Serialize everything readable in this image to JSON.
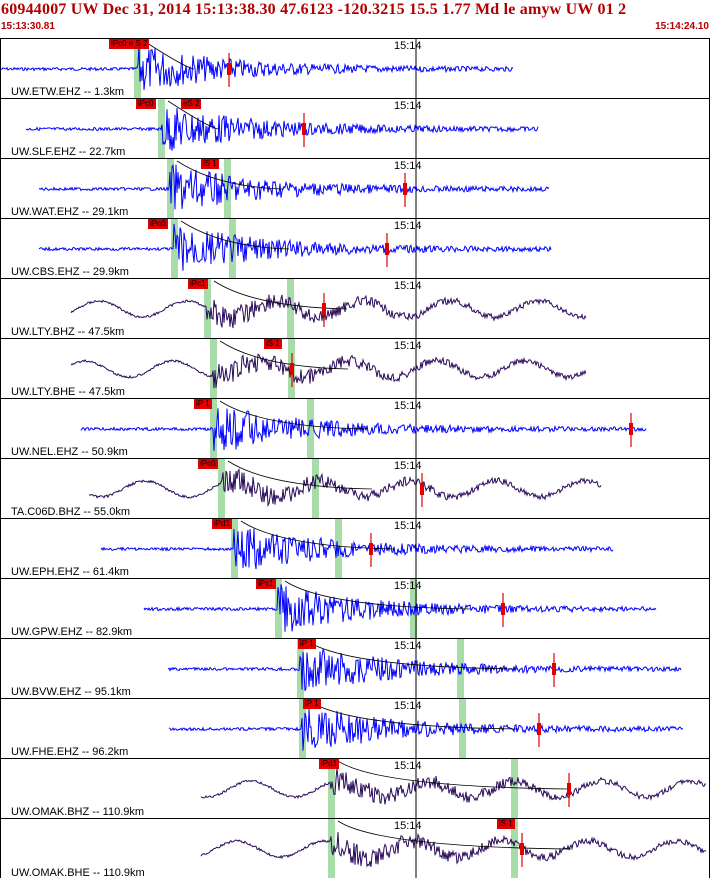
{
  "header": {
    "title": "60944007 UW Dec 31, 2014 15:13:38.30    47.6123 -120.3215 15.5 1.77 Md le amyw UW 01   2",
    "start_time": "15:13:30.81",
    "end_time": "15:14:24.10"
  },
  "colors": {
    "header_text": "#b00000",
    "ehz_trace": "#0000ff",
    "broadband_trace": "#2a0a5a",
    "pick_box": "#e00000",
    "green_window": "#a8dca8",
    "travel_curve": "#000000"
  },
  "minute_tick_label": "15:14",
  "traces": [
    {
      "label": "UW.ETW.EHZ -- 1.3km",
      "kind": "short",
      "picks": [
        {
          "text": "iPc0 e S 2",
          "x": 108
        }
      ],
      "green": [
        133
      ],
      "start": 0,
      "end": 512,
      "spike": 228
    },
    {
      "label": "UW.SLF.EHZ -- 22.7km",
      "kind": "short",
      "picks": [
        {
          "text": "iPc0",
          "x": 135
        },
        {
          "text": "eS 2",
          "x": 180
        }
      ],
      "green": [
        157
      ],
      "start": 25,
      "end": 537,
      "spike": 303
    },
    {
      "label": "UW.WAT.EHZ -- 29.1km",
      "kind": "short",
      "picks": [
        {
          "text": "iS 1",
          "x": 200
        }
      ],
      "green": [
        166,
        223
      ],
      "start": 38,
      "end": 548,
      "spike": 404
    },
    {
      "label": "UW.CBS.EHZ -- 29.9km",
      "kind": "short",
      "picks": [
        {
          "text": "iPc0",
          "x": 147
        }
      ],
      "green": [
        170,
        228
      ],
      "start": 38,
      "end": 550,
      "spike": 386
    },
    {
      "label": "UW.LTY.BHZ -- 47.5km",
      "kind": "long",
      "picks": [
        {
          "text": "iPc1",
          "x": 187
        }
      ],
      "green": [
        203,
        286
      ],
      "start": 70,
      "end": 585,
      "spike": 323
    },
    {
      "label": "UW.LTY.BHE -- 47.5km",
      "kind": "long",
      "picks": [
        {
          "text": "iS 1",
          "x": 263
        }
      ],
      "green": [
        209,
        287
      ],
      "start": 70,
      "end": 585,
      "spike": 291
    },
    {
      "label": "UW.NEL.EHZ -- 50.9km",
      "kind": "short",
      "picks": [
        {
          "text": "iP 1",
          "x": 193
        }
      ],
      "green": [
        209,
        306
      ],
      "start": 80,
      "end": 645,
      "spike": 630
    },
    {
      "label": "TA.C06D.BHZ -- 55.0km",
      "kind": "long",
      "picks": [
        {
          "text": "iPc0",
          "x": 197
        }
      ],
      "green": [
        217,
        311
      ],
      "start": 88,
      "end": 600,
      "spike": 421
    },
    {
      "label": "UW.EPH.EHZ -- 61.4km",
      "kind": "short",
      "picks": [
        {
          "text": "iPd1",
          "x": 211
        }
      ],
      "green": [
        230,
        334
      ],
      "start": 100,
      "end": 612,
      "spike": 370
    },
    {
      "label": "UW.GPW.EHZ -- 82.9km",
      "kind": "short",
      "picks": [
        {
          "text": "iPc1",
          "x": 255
        }
      ],
      "green": [
        274,
        409
      ],
      "start": 143,
      "end": 655,
      "spike": 502
    },
    {
      "label": "UW.BVW.EHZ -- 95.1km",
      "kind": "short",
      "picks": [
        {
          "text": "iP 1",
          "x": 297
        }
      ],
      "green": [
        296,
        456
      ],
      "start": 167,
      "end": 680,
      "spike": 553
    },
    {
      "label": "UW.FHE.EHZ -- 96.2km",
      "kind": "short",
      "picks": [
        {
          "text": "iP 1",
          "x": 302
        }
      ],
      "green": [
        298,
        458
      ],
      "start": 168,
      "end": 682,
      "spike": 538
    },
    {
      "label": "UW.OMAK.BHZ -- 110.9km",
      "kind": "long",
      "picks": [
        {
          "text": "iPd1",
          "x": 318
        }
      ],
      "green": [
        327,
        510
      ],
      "start": 200,
      "end": 705,
      "spike": 568
    },
    {
      "label": "UW.OMAK.BHE -- 110.9km",
      "kind": "long",
      "picks": [
        {
          "text": "iS 1",
          "x": 496
        }
      ],
      "green": [
        327,
        510
      ],
      "start": 200,
      "end": 705,
      "spike": 521
    }
  ]
}
